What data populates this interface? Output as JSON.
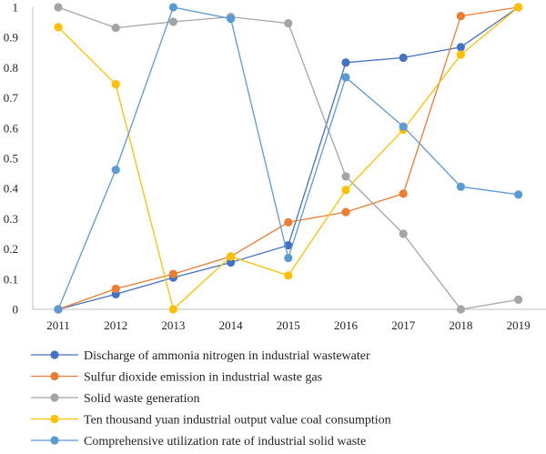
{
  "chart_data": {
    "type": "line",
    "x": [
      "2011",
      "2012",
      "2013",
      "2014",
      "2015",
      "2016",
      "2017",
      "2018",
      "2019"
    ],
    "ylim": [
      0,
      1
    ],
    "yticks": [
      "0",
      "0.1",
      "0.2",
      "0.3",
      "0.4",
      "0.5",
      "0.6",
      "0.7",
      "0.8",
      "0.9",
      "1"
    ],
    "grid": false,
    "legend_position": "bottom",
    "series": [
      {
        "name": "Discharge of ammonia nitrogen in industrial wastewater",
        "color": "#4472c4",
        "values": [
          0,
          0.05,
          0.105,
          0.155,
          0.212,
          0.817,
          0.833,
          0.868,
          1.0
        ]
      },
      {
        "name": "Sulfur dioxide emission in industrial waste gas",
        "color": "#ed7d31",
        "values": [
          0,
          0.068,
          0.117,
          0.175,
          0.288,
          0.322,
          0.383,
          0.971,
          1.0
        ]
      },
      {
        "name": "Solid waste generation",
        "color": "#a5a5a5",
        "values": [
          1.0,
          0.932,
          0.952,
          0.968,
          0.947,
          0.44,
          0.25,
          0,
          0.032
        ]
      },
      {
        "name": "Ten thousand yuan industrial output value coal consumption",
        "color": "#ffc000",
        "values": [
          0.934,
          0.745,
          0,
          0.175,
          0.112,
          0.395,
          0.595,
          0.843,
          1.0
        ]
      },
      {
        "name": "Comprehensive utilization rate of industrial solid waste",
        "color": "#5b9bd5",
        "values": [
          0,
          0.462,
          1.0,
          0.962,
          0.17,
          0.768,
          0.605,
          0.406,
          0.38
        ]
      }
    ]
  }
}
